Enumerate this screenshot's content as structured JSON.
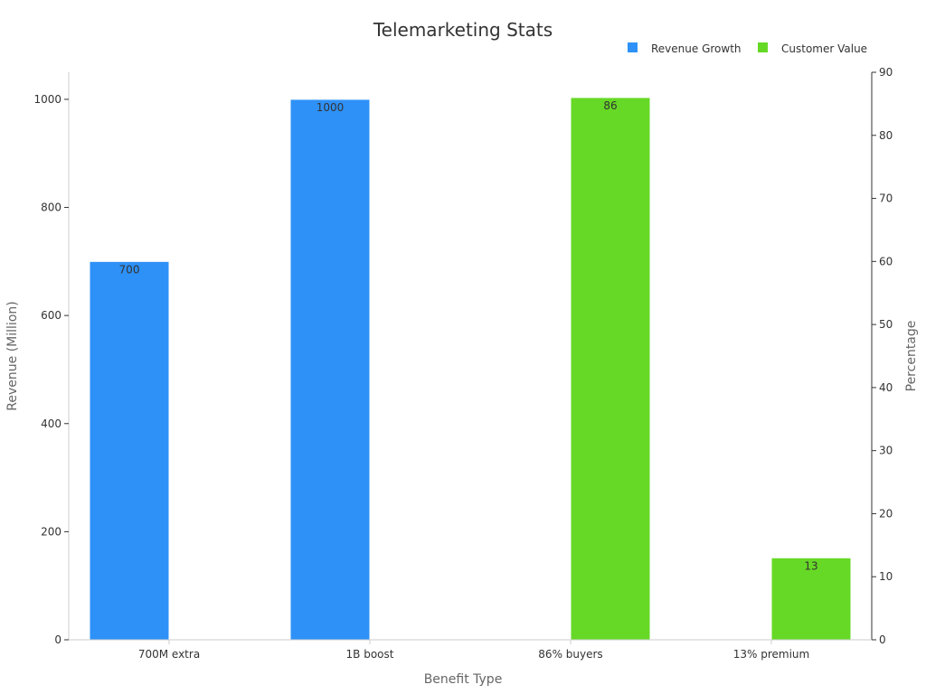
{
  "chart_data": {
    "type": "bar",
    "title": "Telemarketing Stats",
    "xlabel": "Benefit Type",
    "ylabel": "Revenue (Million)",
    "y2label": "Percentage",
    "categories": [
      "700M extra",
      "1B boost",
      "86% buyers",
      "13% premium"
    ],
    "ylim": [
      0,
      1050
    ],
    "y2lim": [
      0,
      90
    ],
    "yticks": [
      0,
      200,
      400,
      600,
      800,
      1000
    ],
    "y2ticks": [
      0,
      10,
      20,
      30,
      40,
      50,
      60,
      70,
      80,
      90
    ],
    "legend_position": "top-right",
    "grid": false,
    "series": [
      {
        "name": "Revenue Growth",
        "axis": "left",
        "color": "#2e91f7",
        "values": [
          700,
          1000,
          null,
          null
        ]
      },
      {
        "name": "Customer Value",
        "axis": "right",
        "color": "#66d926",
        "values": [
          null,
          null,
          86,
          13
        ]
      }
    ]
  }
}
